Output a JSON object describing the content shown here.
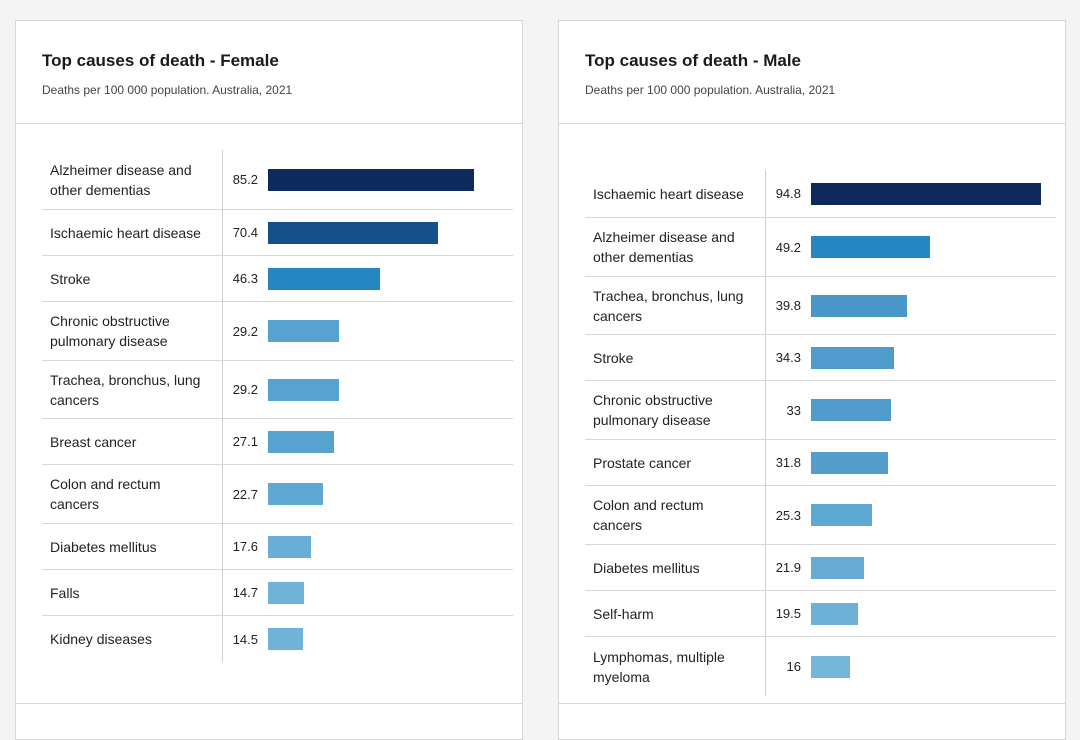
{
  "chart_data": [
    {
      "type": "bar",
      "orientation": "horizontal",
      "title": "Top causes of death - Female",
      "subtitle": "Deaths per 100 000 population. Australia, 2021",
      "categories": [
        "Alzheimer disease and other dementias",
        "Ischaemic heart disease",
        "Stroke",
        "Chronic obstructive pulmonary disease",
        "Trachea, bronchus, lung cancers",
        "Breast cancer",
        "Colon and rectum cancers",
        "Diabetes mellitus",
        "Falls",
        "Kidney diseases"
      ],
      "value_labels": [
        "85.2",
        "70.4",
        "46.3",
        "29.2",
        "29.2",
        "27.1",
        "22.7",
        "17.6",
        "14.7",
        "14.5"
      ],
      "values": [
        85.2,
        70.4,
        46.3,
        29.2,
        29.2,
        27.1,
        22.7,
        17.6,
        14.7,
        14.5
      ],
      "colors": [
        "#0e2a5c",
        "#16508a",
        "#2487c2",
        "#57a3cf",
        "#57a3cf",
        "#57a3cf",
        "#5ea9d3",
        "#68aed6",
        "#70b3d8",
        "#70b3d8"
      ],
      "xlim": [
        0,
        95
      ]
    },
    {
      "type": "bar",
      "orientation": "horizontal",
      "title": "Top causes of death - Male",
      "subtitle": "Deaths per 100 000 population. Australia, 2021",
      "categories": [
        "Ischaemic heart disease",
        "Alzheimer disease and other dementias",
        "Trachea, bronchus, lung cancers",
        "Stroke",
        "Chronic obstructive pulmonary disease",
        "Prostate cancer",
        "Colon and rectum cancers",
        "Diabetes mellitus",
        "Self-harm",
        "Lymphomas, multiple myeloma"
      ],
      "value_labels": [
        "94.8",
        "49.2",
        "39.8",
        "34.3",
        "33",
        "31.8",
        "25.3",
        "21.9",
        "19.5",
        "16"
      ],
      "values": [
        94.8,
        49.2,
        39.8,
        34.3,
        33,
        31.8,
        25.3,
        21.9,
        19.5,
        16
      ],
      "colors": [
        "#0e2a5c",
        "#2487c2",
        "#4a98c9",
        "#4f9bcb",
        "#4f9bcb",
        "#539ecd",
        "#5ea9d3",
        "#66acd5",
        "#6db1d7",
        "#75b6da"
      ],
      "xlim": [
        0,
        95
      ]
    }
  ]
}
